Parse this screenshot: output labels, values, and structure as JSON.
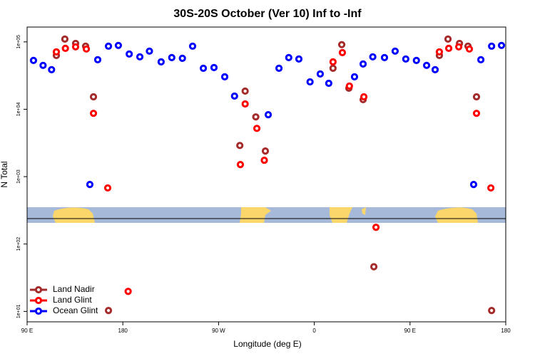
{
  "chart_data": {
    "type": "scatter",
    "title": "30S-20S October (Ver 10)   Inf to -Inf",
    "x_label": "Longitude (deg E)",
    "y_label": "N Total",
    "log_y": true,
    "legend_position": "bottom-left",
    "xlim": [
      90,
      540
    ],
    "xticks": [
      {
        "value": 90,
        "label": "90 E"
      },
      180,
      {
        "value": 270,
        "label": "90 W"
      },
      {
        "value": 360,
        "label": "0"
      },
      {
        "value": 450,
        "label": "90 E"
      },
      {
        "value": 540,
        "label": "180"
      }
    ],
    "ylim": [
      7,
      166000
    ],
    "yticks": [
      {
        "value": 10,
        "label": "1e+01"
      },
      {
        "value": 100,
        "label": "1e+02"
      },
      {
        "value": 1000,
        "label": "1e+03"
      },
      {
        "value": 10000,
        "label": "1e+04"
      },
      {
        "value": 100000,
        "label": "1e+05"
      }
    ],
    "series": [
      {
        "name": "Land Nadir",
        "color": "#a52a2a",
        "x": [
          117.5,
          125.5,
          135.6,
          145,
          152.4,
          166.5,
          290,
          295,
          305,
          314,
          377.6,
          385.8,
          392.5,
          405.9,
          416,
          477.6,
          485.7,
          496.5,
          504.5,
          512.5,
          526.7
        ],
        "values": [
          62900,
          110000,
          95000,
          86400,
          15300,
          10.3,
          2900,
          18600,
          7700,
          2400,
          40600,
          91000,
          20500,
          13900,
          46,
          62900,
          110000,
          95000,
          86400,
          15300,
          10.3
        ]
      },
      {
        "name": "Land Glint",
        "color": "#ff0000",
        "x": [
          117.5,
          126,
          135.6,
          145.7,
          152.4,
          165.8,
          185,
          290.5,
          295,
          306,
          313,
          377.6,
          386.4,
          393,
          406.6,
          418,
          477.6,
          486.4,
          495.8,
          505.8,
          512.5,
          526
        ],
        "values": [
          71100,
          80300,
          84400,
          78400,
          8700,
          680,
          19.8,
          1510,
          12000,
          5200,
          1750,
          50500,
          69400,
          22100,
          15300,
          177,
          71100,
          80300,
          84400,
          78400,
          8700,
          680
        ]
      },
      {
        "name": "Ocean Glint",
        "color": "#0000ff",
        "x": [
          96,
          105,
          113,
          149,
          156.4,
          166.5,
          175.8,
          186,
          196,
          205,
          216,
          226,
          236,
          245.6,
          255.7,
          265.7,
          275.8,
          285,
          316.7,
          326.8,
          336,
          345.5,
          356,
          365.6,
          373.6,
          397.8,
          405.9,
          415,
          426,
          436,
          446,
          456,
          465.6,
          473.6,
          509.8,
          516.6,
          526.7,
          536
        ],
        "values": [
          53100,
          44800,
          38700,
          765,
          54400,
          86400,
          88600,
          66100,
          60000,
          72900,
          50500,
          58500,
          57100,
          86400,
          40600,
          41600,
          30300,
          15700,
          8300,
          40600,
          58500,
          55700,
          25500,
          33400,
          24300,
          30300,
          47000,
          60000,
          58500,
          72900,
          55700,
          53100,
          44800,
          38700,
          765,
          54400,
          86400,
          88600
        ]
      }
    ]
  }
}
